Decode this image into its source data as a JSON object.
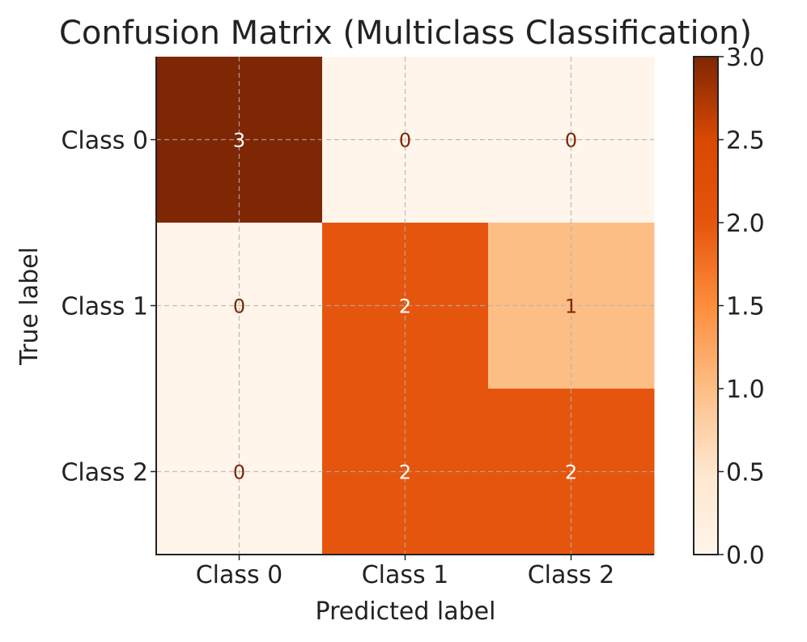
{
  "chart_data": {
    "type": "heatmap",
    "title": "Confusion Matrix (Multiclass Classification)",
    "xlabel": "Predicted label",
    "ylabel": "True label",
    "x_categories": [
      "Class 0",
      "Class 1",
      "Class 2"
    ],
    "y_categories": [
      "Class 0",
      "Class 1",
      "Class 2"
    ],
    "values": [
      [
        3,
        0,
        0
      ],
      [
        0,
        2,
        1
      ],
      [
        0,
        2,
        2
      ]
    ],
    "colorbar": {
      "ticks": [
        "0.0",
        "0.5",
        "1.0",
        "1.5",
        "2.0",
        "2.5",
        "3.0"
      ],
      "range": [
        0,
        3
      ]
    },
    "colormap": "Oranges",
    "grid": true,
    "colors": {
      "light_text": "#ffffff",
      "dark_text": "#7f2704"
    }
  }
}
